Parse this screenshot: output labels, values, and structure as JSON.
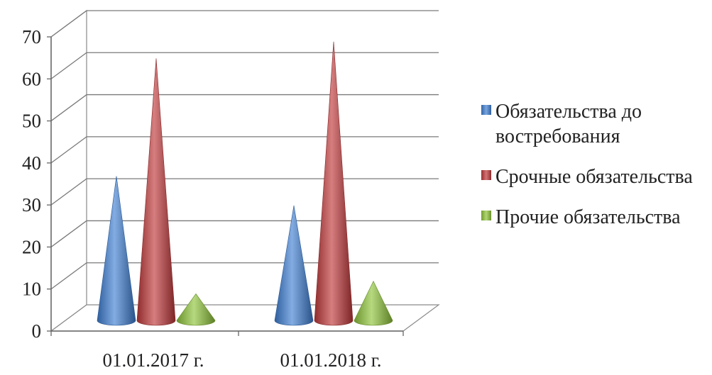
{
  "chart_data": {
    "type": "bar",
    "mark_shape": "cone",
    "categories": [
      "01.01.2017 г.",
      "01.01.2018 г."
    ],
    "series": [
      {
        "name": "Обязательства до востребования",
        "values": [
          34,
          27
        ],
        "color": "#3f7fd2"
      },
      {
        "name": "Срочные обязательства",
        "values": [
          62,
          66
        ],
        "color": "#c0393a"
      },
      {
        "name": "Прочие обязательства",
        "values": [
          6,
          9
        ],
        "color": "#8fc43a"
      }
    ],
    "y_ticks": [
      "0",
      "10",
      "20",
      "30",
      "40",
      "50",
      "60",
      "70"
    ],
    "ylim": [
      0,
      70
    ],
    "grid": true,
    "legend_position": "right"
  }
}
